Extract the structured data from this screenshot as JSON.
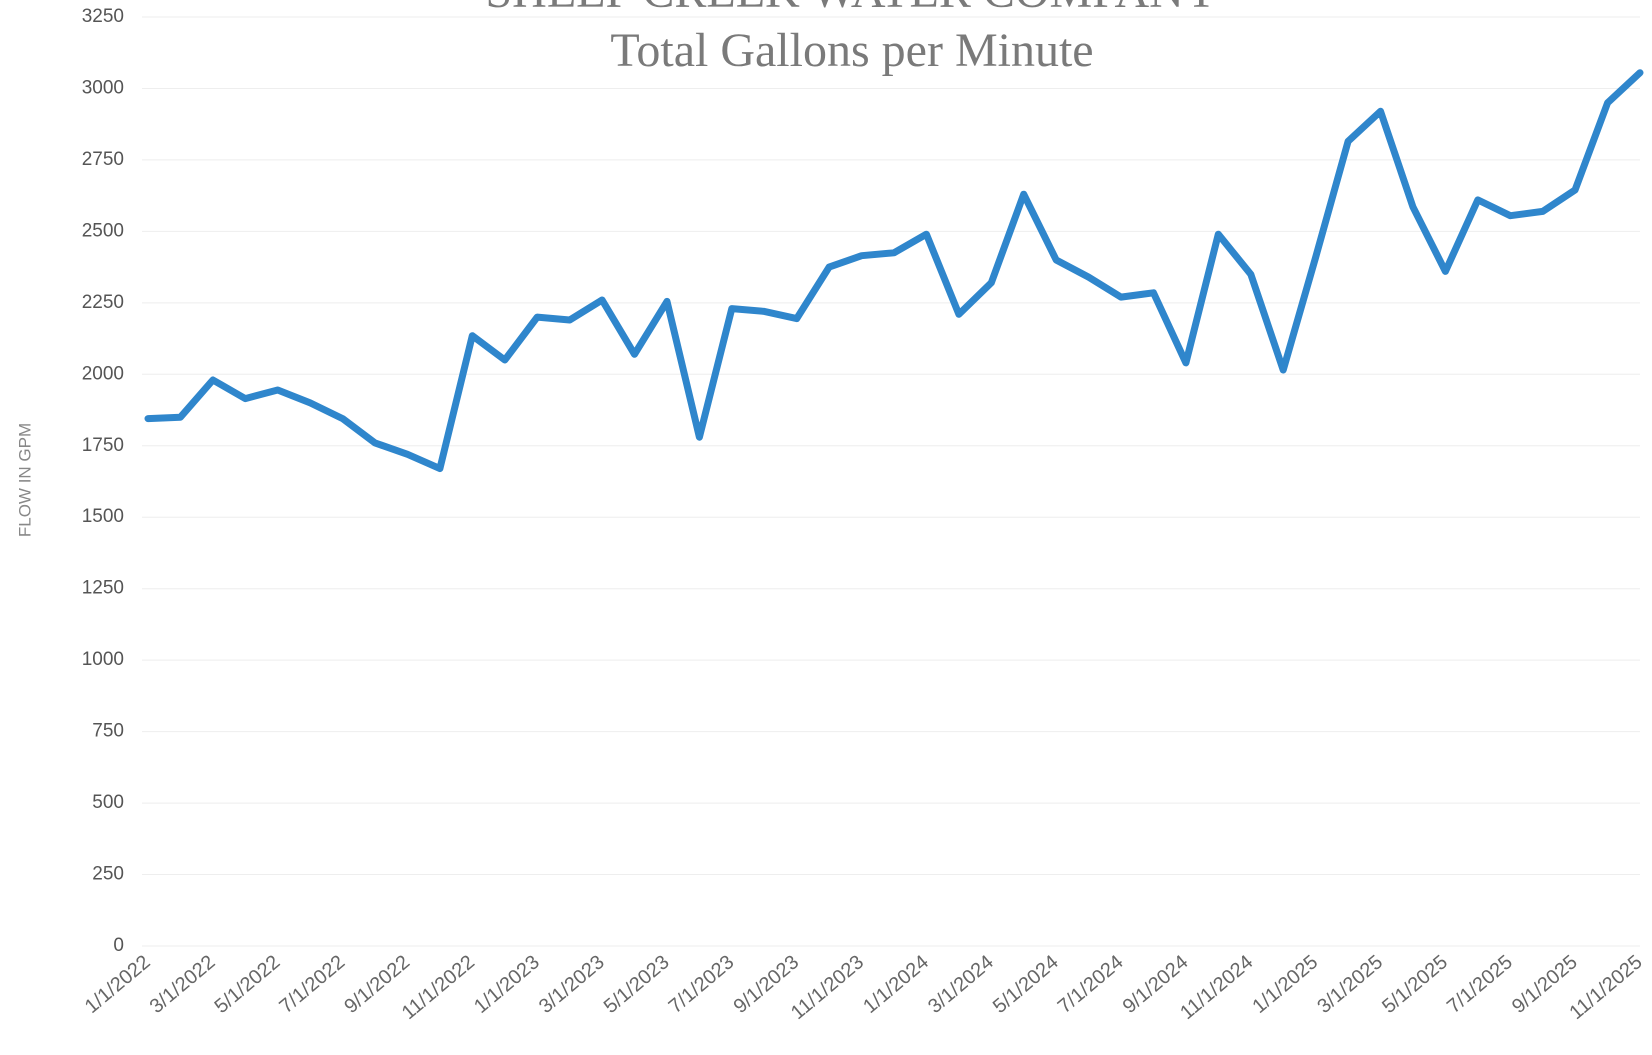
{
  "chart_data": {
    "type": "line",
    "title": "SHEEP CREEK WATER COMPANY",
    "subtitle": "Total Gallons per Minute",
    "y_label": "FLOW IN GPM",
    "categories": [
      "1/1/2022",
      null,
      "3/1/2022",
      null,
      "5/1/2022",
      null,
      "7/1/2022",
      null,
      "9/1/2022",
      null,
      "11/1/2022",
      null,
      "1/1/2023",
      null,
      "3/1/2023",
      null,
      "5/1/2023",
      null,
      "7/1/2023",
      null,
      "9/1/2023",
      null,
      "11/1/2023",
      null,
      "1/1/2024",
      null,
      "3/1/2024",
      null,
      "5/1/2024",
      null,
      "7/1/2024",
      null,
      "9/1/2024",
      null,
      "11/1/2024",
      null,
      "1/1/2025",
      null,
      "3/1/2025",
      null,
      "5/1/2025",
      null,
      "7/1/2025",
      null,
      "9/1/2025",
      null,
      "11/1/2025"
    ],
    "series": [
      {
        "name": "Total Gallons per Minute",
        "color": "#2f86cc",
        "values": [
          1845,
          1850,
          1980,
          1915,
          1945,
          1900,
          1845,
          1760,
          1720,
          1670,
          2135,
          2050,
          2200,
          2190,
          2260,
          2070,
          2255,
          1780,
          2230,
          2220,
          2195,
          2375,
          2415,
          2425,
          2490,
          2210,
          2320,
          2630,
          2400,
          2340,
          2270,
          2285,
          2040,
          2490,
          2350,
          2015,
          2410,
          2815,
          2920,
          2585,
          2360,
          2610,
          2555,
          2570,
          2645,
          2950,
          3055
        ]
      }
    ],
    "ylim": [
      0,
      3250
    ],
    "yticks": [
      0,
      250,
      500,
      750,
      1000,
      1250,
      1500,
      1750,
      2000,
      2250,
      2500,
      2750,
      3000,
      3250
    ],
    "grid": true
  }
}
